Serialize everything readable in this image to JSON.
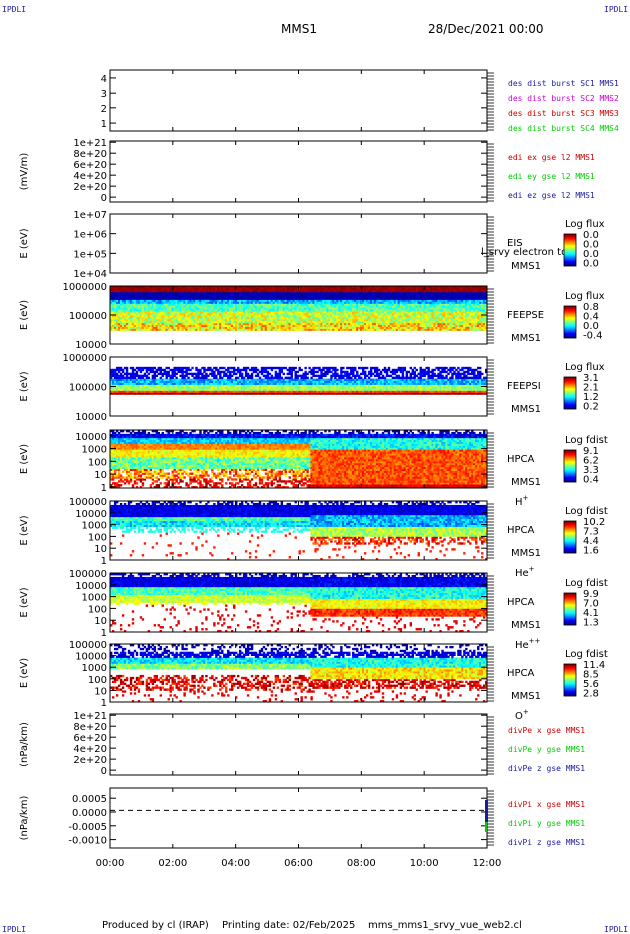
{
  "corner_label": "IPDLI",
  "header": {
    "spacecraft": "MMS1",
    "date": "28/Dec/2021 00:00"
  },
  "footer": {
    "produced_by": "Produced by cl (IRAP)",
    "printing_date": "Printing date: 02/Feb/2025",
    "filename": "mms_mms1_srvy_vue_web2.cl"
  },
  "colors": {
    "mms1": "#1a1aa0",
    "mms2": "#cc00cc",
    "mms3": "#cc0000",
    "mms4": "#00cc00",
    "red": "#cc0000",
    "green": "#00cc00",
    "blue": "#1a1aa0"
  },
  "chart_data": [
    {
      "type": "line",
      "id": "des-dist-burst",
      "ytick_labels": [
        "1",
        "2",
        "3",
        "4"
      ],
      "ylim": [
        0.5,
        4.5
      ],
      "legend": [
        {
          "label": "des dist burst SC1 MMS1",
          "color": "#1a1aa0"
        },
        {
          "label": "des dist burst SC2 MMS2",
          "color": "#cc00cc"
        },
        {
          "label": "des dist burst SC3 MMS3",
          "color": "#cc0000"
        },
        {
          "label": "des dist burst SC4 MMS4",
          "color": "#00cc00"
        }
      ],
      "series": []
    },
    {
      "type": "line",
      "id": "edi-e-gse",
      "ylabel": "(mV/m)",
      "ytick_labels": [
        "0",
        "2e+20",
        "4e+20",
        "6e+20",
        "8e+20",
        "1e+21"
      ],
      "ylim": [
        0,
        1e+21
      ],
      "zero_line": true,
      "legend": [
        {
          "label": "edi ex gse l2 MMS1",
          "color": "#cc0000"
        },
        {
          "label": "edi ey gse l2 MMS1",
          "color": "#00cc00"
        },
        {
          "label": "edi ez gse l2 MMS1",
          "color": "#1a1aa0"
        }
      ],
      "series": []
    },
    {
      "type": "heatmap",
      "id": "eis",
      "ylabel": "E (eV)",
      "yscale": "log",
      "ytick_labels": [
        "1e+04",
        "1e+05",
        "1e+06",
        "1e+07"
      ],
      "ylim": [
        10000.0,
        10000000.0
      ],
      "side_labels": [
        "EIS",
        "MMS1"
      ],
      "overlay_text": "l_srvy electron to",
      "colorbar": {
        "title": "Log flux",
        "tick_labels": [
          "0.0",
          "0.0",
          "0.0",
          "0.0"
        ]
      }
    },
    {
      "type": "heatmap",
      "id": "feeps-e",
      "ylabel": "E (eV)",
      "yscale": "log",
      "ytick_labels": [
        "10000",
        "100000",
        "1000000"
      ],
      "ylim": [
        10000.0,
        1000000.0
      ],
      "side_labels": [
        "FEEPSE",
        "MMS1"
      ],
      "colorbar": {
        "title": "Log flux",
        "tick_labels": [
          "0.8",
          "0.4",
          "0.0",
          "-0.4"
        ]
      }
    },
    {
      "type": "heatmap",
      "id": "feeps-i",
      "ylabel": "E (eV)",
      "yscale": "log",
      "ytick_labels": [
        "10000",
        "100000",
        "1000000"
      ],
      "ylim": [
        10000.0,
        1000000.0
      ],
      "side_labels": [
        "FEEPSI",
        "MMS1"
      ],
      "colorbar": {
        "title": "Log flux",
        "tick_labels": [
          "3.1",
          "2.1",
          "1.2",
          "0.2"
        ]
      }
    },
    {
      "type": "heatmap",
      "id": "hpca-h",
      "ylabel": "E (eV)",
      "yscale": "log",
      "ytick_labels": [
        "1",
        "10",
        "100",
        "1000",
        "10000"
      ],
      "ylim": [
        1,
        30000
      ],
      "side_labels": [
        "HPCA",
        "MMS1"
      ],
      "species": "H",
      "charge": "+",
      "colorbar": {
        "title": "Log fdist",
        "tick_labels": [
          "9.1",
          "6.2",
          "3.3",
          "0.4"
        ]
      }
    },
    {
      "type": "heatmap",
      "id": "hpca-he",
      "ylabel": "E (eV)",
      "yscale": "log",
      "ytick_labels": [
        "1",
        "10",
        "100",
        "1000",
        "10000",
        "100000"
      ],
      "ylim": [
        1,
        100000
      ],
      "side_labels": [
        "HPCA",
        "MMS1"
      ],
      "species": "He",
      "charge": "+",
      "colorbar": {
        "title": "Log fdist",
        "tick_labels": [
          "10.2",
          "7.3",
          "4.4",
          "1.6"
        ]
      }
    },
    {
      "type": "heatmap",
      "id": "hpca-he2",
      "ylabel": "E (eV)",
      "yscale": "log",
      "ytick_labels": [
        "1",
        "10",
        "100",
        "1000",
        "10000",
        "100000"
      ],
      "ylim": [
        1,
        100000
      ],
      "side_labels": [
        "HPCA",
        "MMS1"
      ],
      "species": "He",
      "charge": "++",
      "colorbar": {
        "title": "Log fdist",
        "tick_labels": [
          "9.9",
          "7.0",
          "4.1",
          "1.3"
        ]
      }
    },
    {
      "type": "heatmap",
      "id": "hpca-o",
      "ylabel": "E (eV)",
      "yscale": "log",
      "ytick_labels": [
        "1",
        "10",
        "100",
        "1000",
        "10000",
        "100000"
      ],
      "ylim": [
        1,
        100000
      ],
      "side_labels": [
        "HPCA",
        "MMS1"
      ],
      "species": "O",
      "charge": "+",
      "colorbar": {
        "title": "Log fdist",
        "tick_labels": [
          "11.4",
          "8.5",
          "5.6",
          "2.8"
        ]
      }
    },
    {
      "type": "line",
      "id": "divpe",
      "ylabel": "(nPa/km)",
      "ytick_labels": [
        "0",
        "2e+20",
        "4e+20",
        "6e+20",
        "8e+20",
        "1e+21"
      ],
      "ylim": [
        0,
        1e+21
      ],
      "zero_line": true,
      "legend": [
        {
          "label": "divPe x gse MMS1",
          "color": "#cc0000"
        },
        {
          "label": "divPe y gse MMS1",
          "color": "#00cc00"
        },
        {
          "label": "divPe z gse MMS1",
          "color": "#1a1aa0"
        }
      ],
      "series": []
    },
    {
      "type": "line",
      "id": "divpi",
      "ylabel": "(nPa/km)",
      "ytick_labels": [
        "-0.0010",
        "-0.0005",
        "0.0000",
        "0.0005"
      ],
      "ylim": [
        -0.00135,
        0.0008
      ],
      "zero_line": true,
      "legend": [
        {
          "label": "divPi x gse MMS1",
          "color": "#cc0000"
        },
        {
          "label": "divPi y gse MMS1",
          "color": "#00cc00"
        },
        {
          "label": "divPi z gse MMS1",
          "color": "#1a1aa0"
        }
      ],
      "series": []
    }
  ],
  "x_axis": {
    "tick_labels": [
      "00:00",
      "02:00",
      "04:00",
      "06:00",
      "08:00",
      "10:00",
      "12:00"
    ],
    "xlim": [
      "00:00",
      "12:00"
    ]
  }
}
